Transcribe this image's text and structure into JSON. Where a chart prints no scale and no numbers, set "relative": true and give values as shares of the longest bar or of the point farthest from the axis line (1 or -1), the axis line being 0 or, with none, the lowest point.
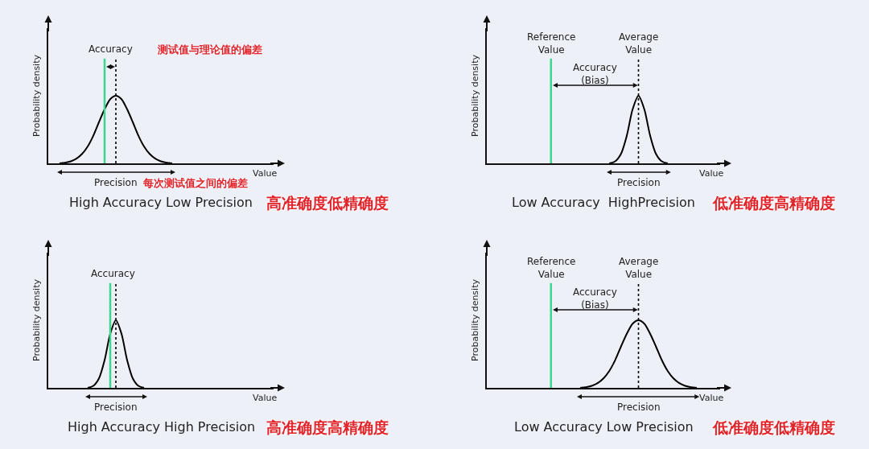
{
  "chart_data": [
    {
      "type": "line",
      "relative": true,
      "title": "High Accuracy Low Precision",
      "subtitle": "高准确度低精确度",
      "xlabel": "Value",
      "ylabel": "Probability density",
      "line_style": "solid",
      "categories": [
        null,
        null,
        null,
        null,
        null,
        null,
        null,
        null,
        null,
        null,
        null,
        null,
        null,
        null,
        null,
        null,
        null,
        null,
        null,
        null,
        null,
        null,
        null,
        null,
        null,
        null,
        null,
        null,
        null,
        null,
        null,
        null,
        null,
        null,
        null,
        null,
        null,
        null,
        null,
        null
      ],
      "series": [
        {
          "color": "#000000",
          "values": [
            null,
            null,
            0,
            0.01,
            0.03,
            0.07,
            0.14,
            0.25,
            0.41,
            0.61,
            0.8,
            0.95,
            1,
            0.95,
            0.8,
            0.61,
            0.41,
            0.25,
            0.14,
            0.07,
            0.03,
            0.01,
            0,
            null,
            null,
            null,
            null,
            null,
            null,
            null,
            null,
            null,
            null,
            null,
            null,
            null,
            null,
            null,
            null,
            null
          ]
        }
      ],
      "annotations": [
        "Accuracy",
        "测试值与理论值的偏差",
        "Precision",
        "每次测试值之间的偏差"
      ]
    },
    {
      "type": "line",
      "relative": true,
      "title": "Low Accuracy  HighPrecision",
      "subtitle": "低准确度高精确度",
      "xlabel": "Value",
      "ylabel": "Probability density",
      "line_style": "solid",
      "categories": [
        null,
        null,
        null,
        null,
        null,
        null,
        null,
        null,
        null,
        null,
        null,
        null,
        null,
        null,
        null,
        null,
        null,
        null,
        null,
        null,
        null,
        null,
        null,
        null,
        null,
        null,
        null,
        null,
        null,
        null,
        null,
        null,
        null,
        null,
        null,
        null,
        null,
        null,
        null,
        null
      ],
      "series": [
        {
          "color": "#000000",
          "values": [
            null,
            null,
            null,
            null,
            null,
            null,
            null,
            null,
            null,
            null,
            null,
            null,
            null,
            null,
            null,
            null,
            null,
            null,
            null,
            null,
            null,
            0,
            0.03,
            0.14,
            0.41,
            0.8,
            1,
            0.8,
            0.41,
            0.14,
            0.03,
            0,
            null,
            null,
            null,
            null,
            null,
            null,
            null,
            null
          ]
        }
      ],
      "annotations": [
        "Reference\nValue",
        "Average\nValue",
        "Accuracy\n(Bias)",
        "Precision"
      ]
    },
    {
      "type": "line",
      "relative": true,
      "title": "High Accuracy High Precision",
      "subtitle": "高准确度高精确度",
      "xlabel": "Value",
      "ylabel": "Probability density",
      "line_style": "solid",
      "categories": [
        null,
        null,
        null,
        null,
        null,
        null,
        null,
        null,
        null,
        null,
        null,
        null,
        null,
        null,
        null,
        null,
        null,
        null,
        null,
        null,
        null,
        null,
        null,
        null,
        null,
        null,
        null,
        null,
        null,
        null,
        null,
        null,
        null,
        null,
        null,
        null,
        null,
        null,
        null,
        null
      ],
      "series": [
        {
          "color": "#000000",
          "values": [
            null,
            null,
            null,
            null,
            null,
            null,
            null,
            0,
            0.03,
            0.14,
            0.41,
            0.8,
            1,
            0.8,
            0.41,
            0.14,
            0.03,
            0,
            null,
            null,
            null,
            null,
            null,
            null,
            null,
            null,
            null,
            null,
            null,
            null,
            null,
            null,
            null,
            null,
            null,
            null,
            null,
            null,
            null,
            null
          ]
        }
      ],
      "annotations": [
        "Accuracy",
        "Precision"
      ]
    },
    {
      "type": "line",
      "relative": true,
      "title": "Low Accuracy Low Precision",
      "subtitle": "低准确度低精确度",
      "xlabel": "Value",
      "ylabel": "Probability density",
      "line_style": "solid",
      "categories": [
        null,
        null,
        null,
        null,
        null,
        null,
        null,
        null,
        null,
        null,
        null,
        null,
        null,
        null,
        null,
        null,
        null,
        null,
        null,
        null,
        null,
        null,
        null,
        null,
        null,
        null,
        null,
        null,
        null,
        null,
        null,
        null,
        null,
        null,
        null,
        null,
        null,
        null,
        null,
        null
      ],
      "series": [
        {
          "color": "#000000",
          "values": [
            null,
            null,
            null,
            null,
            null,
            null,
            null,
            null,
            null,
            null,
            null,
            null,
            null,
            null,
            null,
            null,
            0,
            0.01,
            0.03,
            0.07,
            0.14,
            0.25,
            0.41,
            0.61,
            0.8,
            0.95,
            1,
            0.95,
            0.8,
            0.61,
            0.41,
            0.25,
            0.14,
            0.07,
            0.03,
            0.01,
            0,
            null,
            null,
            null
          ]
        }
      ],
      "annotations": [
        "Reference\nValue",
        "Average\nValue",
        "Accuracy\n(Bias)",
        "Precision"
      ]
    }
  ]
}
